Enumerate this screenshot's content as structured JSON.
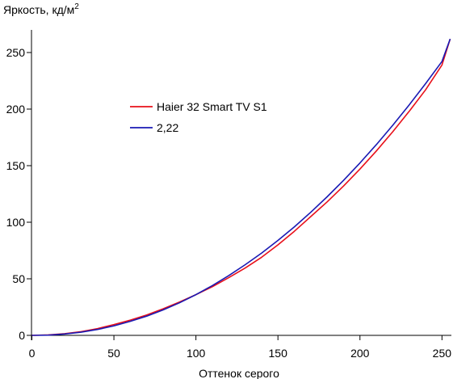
{
  "chart_data": {
    "type": "line",
    "xlabel": "Оттенок серого",
    "ylabel": "Яркость, кд/м",
    "ylabel_sup": "2",
    "xlim": [
      0,
      255
    ],
    "ylim": [
      0,
      270
    ],
    "xticks": [
      0,
      50,
      100,
      150,
      200,
      250
    ],
    "yticks": [
      0,
      50,
      100,
      150,
      200,
      250
    ],
    "grid": false,
    "legend": "upper-left-inside",
    "series": [
      {
        "name": "Haier 32 Smart TV S1",
        "color": "#e8101a",
        "x": [
          0,
          10,
          20,
          30,
          40,
          50,
          60,
          70,
          80,
          90,
          100,
          110,
          120,
          130,
          140,
          150,
          160,
          170,
          180,
          190,
          200,
          210,
          220,
          230,
          240,
          250,
          255
        ],
        "y": [
          0,
          0.4,
          1.5,
          3.3,
          6,
          9.5,
          13.5,
          18,
          23.5,
          29.5,
          36,
          43,
          51,
          59.5,
          69,
          80,
          92,
          105,
          118,
          132,
          147,
          163,
          180,
          198,
          217,
          239,
          262
        ]
      },
      {
        "name": "2,22",
        "color": "#1a1ab4",
        "x": [
          0,
          10,
          20,
          30,
          40,
          50,
          60,
          70,
          80,
          90,
          100,
          110,
          120,
          130,
          140,
          150,
          160,
          170,
          180,
          190,
          200,
          210,
          220,
          230,
          240,
          250,
          255
        ],
        "y": [
          0,
          0.2,
          1.2,
          2.8,
          5.2,
          8.4,
          12.4,
          17,
          22.5,
          28.8,
          36,
          44,
          52.8,
          62.4,
          72.7,
          83.9,
          95.9,
          108.8,
          122.5,
          137,
          152.4,
          168.6,
          185.7,
          203.7,
          222.5,
          242.1,
          262
        ]
      }
    ]
  }
}
